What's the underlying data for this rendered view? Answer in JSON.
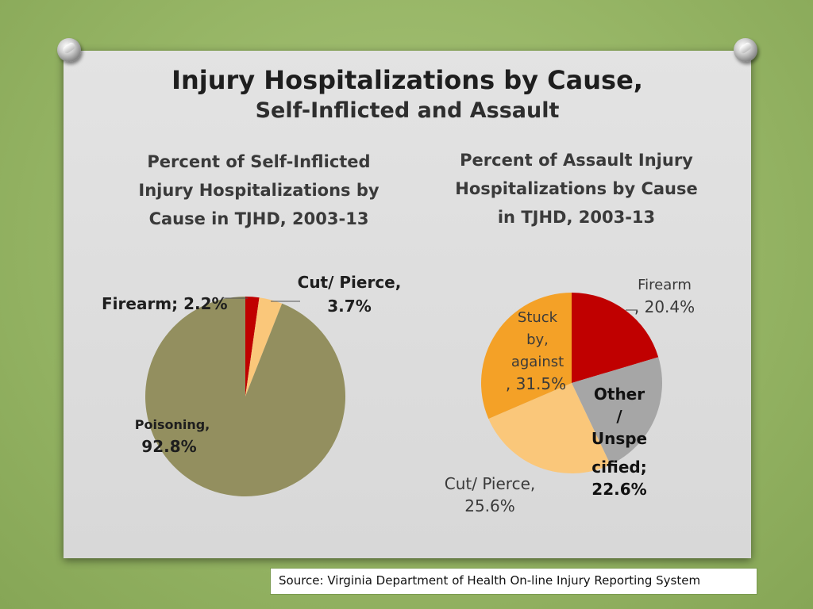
{
  "slide": {
    "title": "Injury Hospitalizations by Cause,",
    "subtitle": "Self-Inflicted and Assault",
    "source": "Source: Virginia Department of Health On-line Injury Reporting System"
  },
  "chart_data": [
    {
      "type": "pie",
      "title": "Percent of Self-Inflicted\nInjury Hospitalizations by\nCause in TJHD, 2003-13",
      "slices": [
        {
          "label": "Firearm",
          "value": 2.2,
          "color": "#c00000"
        },
        {
          "label": "Cut/ Pierce",
          "value": 3.7,
          "color": "#fac77a"
        },
        {
          "label": "Poisoning",
          "value": 92.8,
          "color": "#938f5f"
        }
      ],
      "data_labels": {
        "firearm": "Firearm; 2.2%",
        "cut_line1": "Cut/ Pierce,",
        "cut_line2": "3.7%",
        "poison_line1": "Poisoning,",
        "poison_line2": "92.8%"
      }
    },
    {
      "type": "pie",
      "title": "Percent of Assault Injury\nHospitalizations by Cause\nin TJHD, 2003-13",
      "slices": [
        {
          "label": "Firearm",
          "value": 20.4,
          "color": "#c00000"
        },
        {
          "label": "Other / Unspecified",
          "value": 22.6,
          "color": "#a6a6a6"
        },
        {
          "label": "Cut/ Pierce",
          "value": 25.6,
          "color": "#fac77a"
        },
        {
          "label": "Stuck by, against",
          "value": 31.5,
          "color": "#f4a127"
        }
      ],
      "data_labels": {
        "firearm_line1": "Firearm",
        "firearm_line2": ", 20.4%",
        "other_lines": [
          "Other",
          "/",
          "Unspe",
          "cified;",
          "22.6%"
        ],
        "cut_line1": "Cut/ Pierce,",
        "cut_line2": "25.6%",
        "stuck_lines": [
          "Stuck",
          "by,",
          "against",
          ", 31.5%"
        ]
      }
    }
  ]
}
